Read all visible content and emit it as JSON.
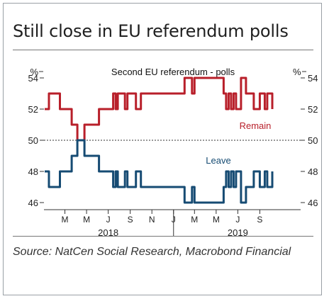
{
  "title": "Still close in EU referendum polls",
  "source": "Source: NatCen Social Research, Macrobond Financial",
  "chart_data": {
    "type": "line",
    "title": "Second EU referendum - polls",
    "y_unit_left": "%",
    "y_unit_right": "%",
    "ylim": [
      46,
      54
    ],
    "yticks": [
      46,
      48,
      50,
      52,
      54
    ],
    "grid": false,
    "reference_line": 50,
    "xlim": [
      "2018-01",
      "2019-12"
    ],
    "x_tick_labels": [
      "M",
      "M",
      "J",
      "S",
      "N",
      "J",
      "M",
      "M",
      "J",
      "S"
    ],
    "year_labels": [
      "2018",
      "2019"
    ],
    "series": [
      {
        "name": "Remain",
        "color": "#b81f2a",
        "x": [
          "2018-01-03",
          "2018-01-15",
          "2018-01-25",
          "2018-02-15",
          "2018-03-10",
          "2018-03-20",
          "2018-04-05",
          "2018-04-25",
          "2018-05-01",
          "2018-05-25",
          "2018-06-05",
          "2018-06-20",
          "2018-06-28",
          "2018-07-10",
          "2018-07-15",
          "2018-07-22",
          "2018-07-28",
          "2018-08-10",
          "2018-08-17",
          "2018-08-24",
          "2018-09-01",
          "2018-09-10",
          "2018-09-17",
          "2018-09-24",
          "2018-10-01",
          "2018-11-01",
          "2018-12-01",
          "2019-01-05",
          "2019-01-15",
          "2019-02-01",
          "2019-02-08",
          "2019-02-15",
          "2019-02-22",
          "2019-03-01",
          "2019-04-01",
          "2019-05-01",
          "2019-05-08",
          "2019-05-15",
          "2019-05-22",
          "2019-05-29",
          "2019-06-05",
          "2019-06-12",
          "2019-06-19",
          "2019-06-26",
          "2019-07-03",
          "2019-07-10",
          "2019-07-17",
          "2019-07-24",
          "2019-08-01",
          "2019-08-15",
          "2019-09-01",
          "2019-09-08",
          "2019-09-15",
          "2019-09-22",
          "2019-09-29",
          "2019-10-06"
        ],
        "values": [
          52,
          53,
          53,
          52,
          52,
          51,
          50,
          51,
          51,
          51,
          52,
          52,
          52,
          52,
          53,
          52,
          53,
          53,
          52,
          53,
          53,
          53,
          52,
          52,
          53,
          53,
          53,
          53,
          53,
          54,
          54,
          54,
          53,
          54,
          54,
          54,
          54,
          54,
          53,
          52,
          53,
          52,
          53,
          52,
          52,
          54,
          54,
          53,
          53,
          52,
          53,
          53,
          52,
          53,
          53,
          52
        ]
      },
      {
        "name": "Leave",
        "color": "#164b73",
        "x": [
          "2018-01-03",
          "2018-01-15",
          "2018-01-25",
          "2018-02-15",
          "2018-03-10",
          "2018-03-20",
          "2018-04-05",
          "2018-04-25",
          "2018-05-01",
          "2018-05-25",
          "2018-06-05",
          "2018-06-20",
          "2018-06-28",
          "2018-07-10",
          "2018-07-15",
          "2018-07-22",
          "2018-07-28",
          "2018-08-10",
          "2018-08-17",
          "2018-08-24",
          "2018-09-01",
          "2018-09-10",
          "2018-09-17",
          "2018-09-24",
          "2018-10-01",
          "2018-11-01",
          "2018-12-01",
          "2019-01-05",
          "2019-01-15",
          "2019-02-01",
          "2019-02-08",
          "2019-02-15",
          "2019-02-22",
          "2019-03-01",
          "2019-04-01",
          "2019-05-01",
          "2019-05-08",
          "2019-05-15",
          "2019-05-22",
          "2019-05-29",
          "2019-06-05",
          "2019-06-12",
          "2019-06-19",
          "2019-06-26",
          "2019-07-03",
          "2019-07-10",
          "2019-07-17",
          "2019-07-24",
          "2019-08-01",
          "2019-08-15",
          "2019-09-01",
          "2019-09-08",
          "2019-09-15",
          "2019-09-22",
          "2019-09-29",
          "2019-10-06"
        ],
        "values": [
          48,
          47,
          47,
          48,
          48,
          49,
          50,
          49,
          49,
          49,
          48,
          48,
          48,
          48,
          47,
          48,
          47,
          47,
          48,
          47,
          47,
          47,
          48,
          48,
          47,
          47,
          47,
          47,
          47,
          46,
          46,
          46,
          47,
          46,
          46,
          46,
          46,
          46,
          47,
          48,
          47,
          48,
          47,
          48,
          48,
          46,
          46,
          47,
          47,
          48,
          47,
          47,
          48,
          47,
          47,
          48
        ]
      }
    ]
  }
}
